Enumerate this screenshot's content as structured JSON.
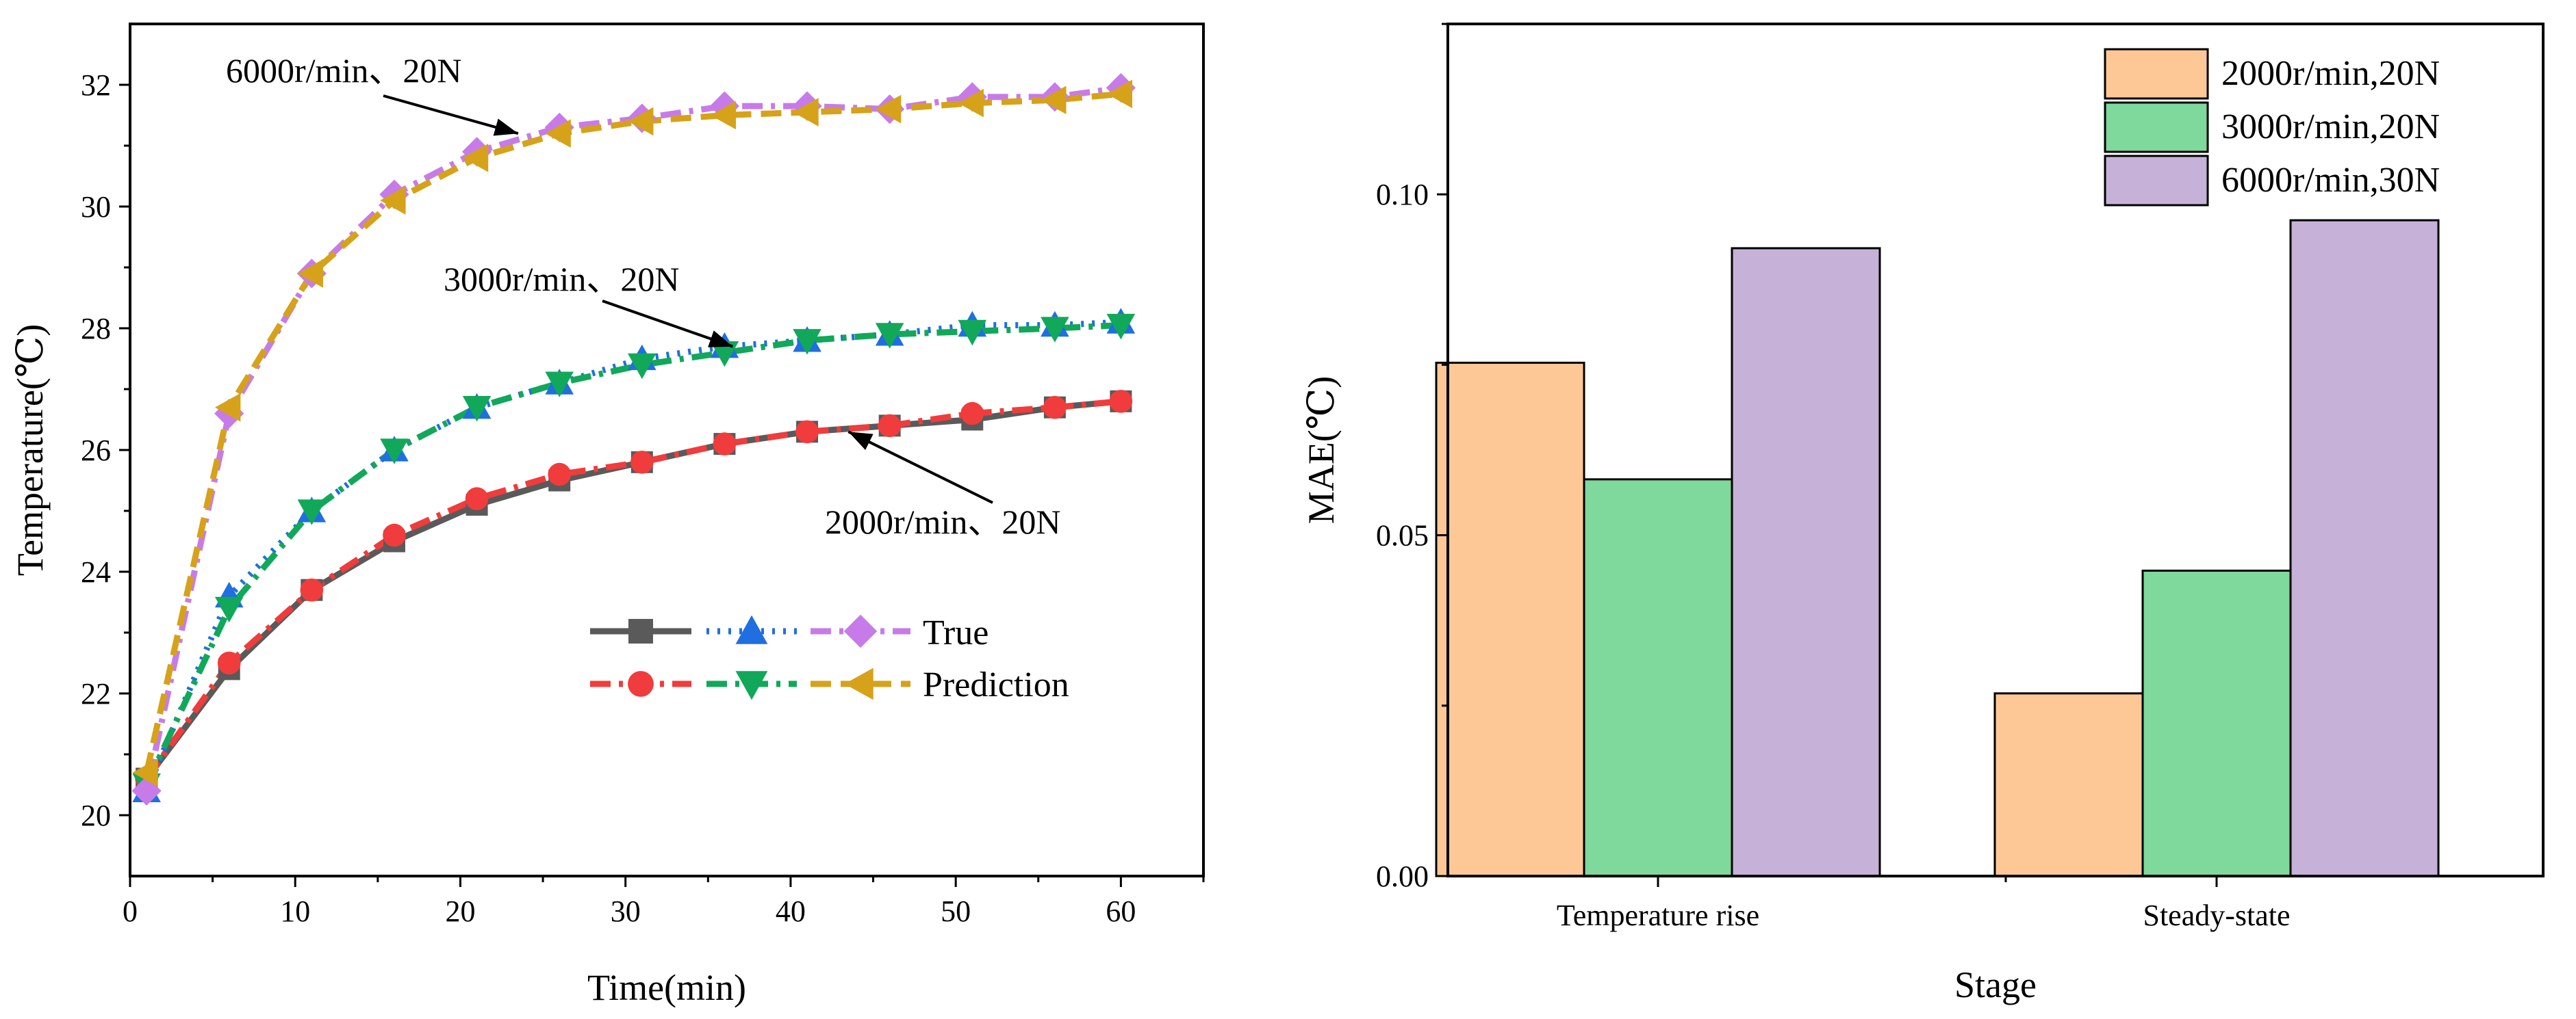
{
  "colors": {
    "gray": "#5a5a5a",
    "red": "#f03c3c",
    "blue": "#1f6fe0",
    "green": "#11a85a",
    "violet": "#c77be8",
    "gold": "#d6a21a",
    "bar_orange": "#fdc896",
    "bar_green": "#7fd89c",
    "bar_purple": "#c6b2d8"
  },
  "chart_data": [
    {
      "type": "line",
      "xlabel": "Time(min)",
      "ylabel": "Temperature(℃)",
      "xlim": [
        0,
        65
      ],
      "ylim": [
        19,
        33
      ],
      "xticks": [
        0,
        10,
        20,
        30,
        40,
        50,
        60
      ],
      "yticks": [
        20,
        22,
        24,
        26,
        28,
        30,
        32
      ],
      "x": [
        1,
        6,
        11,
        16,
        21,
        26,
        31,
        36,
        41,
        46,
        51,
        56,
        60
      ],
      "series": [
        {
          "name": "2000r/min、20N True",
          "color_key": "gray",
          "marker": "square",
          "dash": "solid",
          "values": [
            20.6,
            22.4,
            23.7,
            24.5,
            25.1,
            25.5,
            25.8,
            26.1,
            26.3,
            26.4,
            26.5,
            26.7,
            26.8
          ]
        },
        {
          "name": "2000r/min、20N Prediction",
          "color_key": "red",
          "marker": "circle",
          "dash": "dashdot",
          "values": [
            20.6,
            22.5,
            23.7,
            24.6,
            25.2,
            25.6,
            25.8,
            26.1,
            26.3,
            26.4,
            26.6,
            26.7,
            26.8
          ]
        },
        {
          "name": "3000r/min、20N True",
          "color_key": "blue",
          "marker": "triangle-up",
          "dash": "dot",
          "values": [
            20.4,
            23.6,
            25.0,
            26.0,
            26.7,
            27.1,
            27.5,
            27.7,
            27.8,
            27.9,
            28.05,
            28.05,
            28.1
          ]
        },
        {
          "name": "3000r/min、20N Prediction",
          "color_key": "green",
          "marker": "triangle-down",
          "dash": "dashdot",
          "values": [
            20.5,
            23.4,
            25.0,
            26.0,
            26.7,
            27.1,
            27.4,
            27.6,
            27.8,
            27.9,
            27.95,
            28.0,
            28.05
          ]
        },
        {
          "name": "6000r/min、20N True",
          "color_key": "violet",
          "marker": "diamond",
          "dash": "dashdot",
          "values": [
            20.4,
            26.6,
            28.9,
            30.2,
            30.9,
            31.3,
            31.45,
            31.65,
            31.65,
            31.6,
            31.8,
            31.8,
            31.95
          ]
        },
        {
          "name": "6000r/min、20N Prediction",
          "color_key": "gold",
          "marker": "triangle-left",
          "dash": "dash",
          "values": [
            20.7,
            26.7,
            28.9,
            30.1,
            30.8,
            31.2,
            31.4,
            31.5,
            31.55,
            31.6,
            31.7,
            31.75,
            31.85
          ]
        }
      ],
      "annotations": [
        {
          "text": "6000r/min、20N",
          "target": [
            23.5,
            31.2
          ]
        },
        {
          "text": "3000r/min、20N",
          "target": [
            36.5,
            27.7
          ]
        },
        {
          "text": "2000r/min、20N",
          "target": [
            43.5,
            26.3
          ]
        }
      ],
      "legend": {
        "placement": "center-right",
        "labels": [
          "True",
          "Prediction"
        ]
      }
    },
    {
      "type": "bar",
      "xlabel": "Stage",
      "ylabel": "MAE(℃)",
      "ylim": [
        0,
        0.125
      ],
      "yticks": [
        0.0,
        0.05,
        0.1
      ],
      "ytick_labels": [
        "0.00",
        "0.05",
        "0.10"
      ],
      "categories": [
        "Temperature rise",
        "Steady-state"
      ],
      "series": [
        {
          "name": "2000r/min,20N",
          "color_key": "bar_orange",
          "values": [
            0.0753,
            0.0268
          ]
        },
        {
          "name": "3000r/min,20N",
          "color_key": "bar_green",
          "values": [
            0.0582,
            0.0448
          ]
        },
        {
          "name": "6000r/min,30N",
          "color_key": "bar_purple",
          "values": [
            0.0921,
            0.0962
          ]
        }
      ],
      "legend": {
        "placement": "top-right"
      }
    }
  ]
}
